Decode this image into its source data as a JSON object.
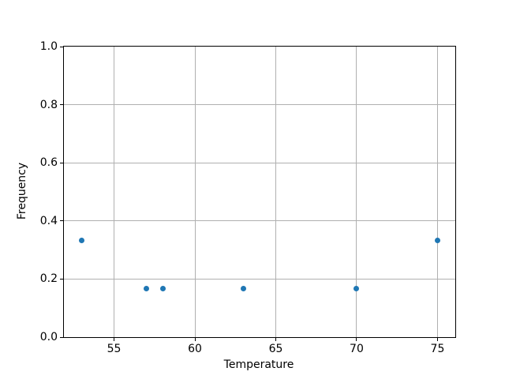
{
  "figure": {
    "background": "#ffffff"
  },
  "chart_data": {
    "type": "scatter",
    "title": "",
    "xlabel": "Temperature",
    "ylabel": "Frequency",
    "points": [
      {
        "x": 53,
        "y": 0.333
      },
      {
        "x": 57,
        "y": 0.167
      },
      {
        "x": 58,
        "y": 0.167
      },
      {
        "x": 63,
        "y": 0.167
      },
      {
        "x": 70,
        "y": 0.167
      },
      {
        "x": 75,
        "y": 0.333
      }
    ],
    "xlim": [
      51.9,
      76.1
    ],
    "ylim": [
      0.0,
      1.0
    ],
    "xticks": [
      {
        "value": 55,
        "label": "55"
      },
      {
        "value": 60,
        "label": "60"
      },
      {
        "value": 65,
        "label": "65"
      },
      {
        "value": 70,
        "label": "70"
      },
      {
        "value": 75,
        "label": "75"
      }
    ],
    "yticks": [
      {
        "value": 0.0,
        "label": "0.0"
      },
      {
        "value": 0.2,
        "label": "0.2"
      },
      {
        "value": 0.4,
        "label": "0.4"
      },
      {
        "value": 0.6,
        "label": "0.6"
      },
      {
        "value": 0.8,
        "label": "0.8"
      },
      {
        "value": 1.0,
        "label": "1.0"
      }
    ],
    "grid": true,
    "legend_position": "none",
    "colors": {
      "marker": "#1f77b4",
      "grid": "#b0b0b0",
      "spine": "#000000",
      "tick_label": "#000000"
    }
  }
}
